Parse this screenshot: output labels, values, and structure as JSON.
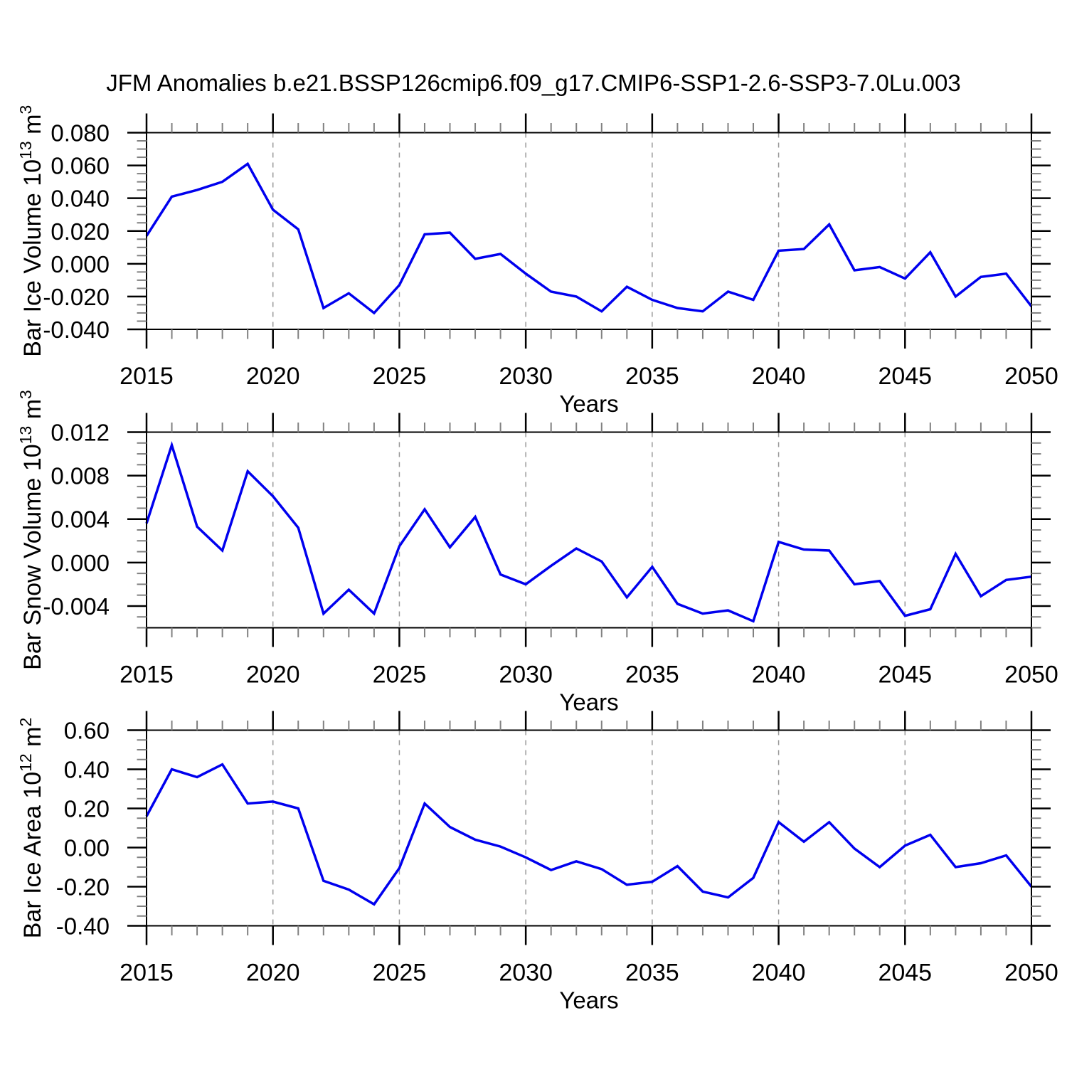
{
  "title": "JFM Anomalies b.e21.BSSP126cmip6.f09_g17.CMIP6-SSP1-2.6-SSP3-7.0Lu.003",
  "styles": {
    "line_color": "#0000ee",
    "axis_color": "#000000",
    "minor_tick_color": "#808080",
    "grid_color": "#999999",
    "background": "#ffffff"
  },
  "chart_data": [
    {
      "type": "line",
      "name": "bar-ice-volume",
      "ylabel_plain": "Bar Ice Volume 10^13 m^3",
      "ylabel_parts": [
        {
          "t": "Bar Ice Volume 10",
          "sup": false
        },
        {
          "t": "13",
          "sup": true
        },
        {
          "t": " m",
          "sup": false
        },
        {
          "t": "3",
          "sup": true
        }
      ],
      "xlabel": "Years",
      "xlim": [
        2015,
        2050
      ],
      "x": [
        2015,
        2016,
        2017,
        2018,
        2019,
        2020,
        2021,
        2022,
        2023,
        2024,
        2025,
        2026,
        2027,
        2028,
        2029,
        2030,
        2031,
        2032,
        2033,
        2034,
        2035,
        2036,
        2037,
        2038,
        2039,
        2040,
        2041,
        2042,
        2043,
        2044,
        2045,
        2046,
        2047,
        2048,
        2049,
        2050
      ],
      "values": [
        0.017,
        0.041,
        0.045,
        0.05,
        0.061,
        0.033,
        0.021,
        -0.027,
        -0.018,
        -0.03,
        -0.013,
        0.018,
        0.019,
        0.003,
        0.006,
        -0.006,
        -0.017,
        -0.02,
        -0.029,
        -0.014,
        -0.022,
        -0.027,
        -0.029,
        -0.017,
        -0.022,
        0.008,
        0.009,
        0.024,
        -0.004,
        -0.002,
        -0.009,
        0.007,
        -0.02,
        -0.008,
        -0.006,
        -0.026
      ],
      "ylim": [
        -0.04,
        0.08
      ],
      "ytick_values": [
        0.08,
        0.06,
        0.04,
        0.02,
        0,
        -0.02,
        -0.04
      ],
      "yticklabels": [
        "0.080",
        "0.060",
        "0.040",
        "0.020",
        "0.000",
        "-0.020",
        "-0.040"
      ],
      "ytick_minor_step": 0.005,
      "xtick_label_values": [
        2015,
        2020,
        2025,
        2030,
        2035,
        2040,
        2045,
        2050
      ],
      "xticklabels": [
        "2015",
        "2020",
        "2025",
        "2030",
        "2035",
        "2040",
        "2045",
        "2050"
      ],
      "xtick_minor_step": 1,
      "grid_years": [
        2020,
        2025,
        2030,
        2035,
        2040,
        2045
      ],
      "grid_on": true
    },
    {
      "type": "line",
      "name": "bar-snow-volume",
      "ylabel_plain": "Bar Snow Volume 10^13 m^3",
      "ylabel_parts": [
        {
          "t": "Bar Snow Volume 10",
          "sup": false
        },
        {
          "t": "13",
          "sup": true
        },
        {
          "t": " m",
          "sup": false
        },
        {
          "t": "3",
          "sup": true
        }
      ],
      "xlabel": "Years",
      "xlim": [
        2015,
        2050
      ],
      "x": [
        2015,
        2016,
        2017,
        2018,
        2019,
        2020,
        2021,
        2022,
        2023,
        2024,
        2025,
        2026,
        2027,
        2028,
        2029,
        2030,
        2031,
        2032,
        2033,
        2034,
        2035,
        2036,
        2037,
        2038,
        2039,
        2040,
        2041,
        2042,
        2043,
        2044,
        2045,
        2046,
        2047,
        2048,
        2049,
        2050
      ],
      "values": [
        0.0036,
        0.0108,
        0.0033,
        0.0011,
        0.0084,
        0.0061,
        0.0032,
        -0.0047,
        -0.0025,
        -0.0047,
        0.0015,
        0.0049,
        0.0014,
        0.0042,
        -0.0011,
        -0.002,
        -0.0003,
        0.0013,
        0.0001,
        -0.0032,
        -0.0004,
        -0.0038,
        -0.0047,
        -0.0044,
        -0.0054,
        0.0019,
        0.0012,
        0.0011,
        -0.002,
        -0.0017,
        -0.0049,
        -0.0043,
        0.0008,
        -0.0031,
        -0.0016,
        -0.0013
      ],
      "ylim": [
        -0.006,
        0.012
      ],
      "ytick_values": [
        0.012,
        0.008,
        0.004,
        0,
        -0.004
      ],
      "yticklabels": [
        "0.012",
        "0.008",
        "0.004",
        "0.000",
        "-0.004"
      ],
      "ytick_minor_step": 0.001,
      "xtick_label_values": [
        2015,
        2020,
        2025,
        2030,
        2035,
        2040,
        2045,
        2050
      ],
      "xticklabels": [
        "2015",
        "2020",
        "2025",
        "2030",
        "2035",
        "2040",
        "2045",
        "2050"
      ],
      "xtick_minor_step": 1,
      "grid_years": [
        2020,
        2025,
        2030,
        2035,
        2040,
        2045
      ],
      "grid_on": true
    },
    {
      "type": "line",
      "name": "bar-ice-area",
      "ylabel_plain": "Bar Ice Area 10^12 m^2",
      "ylabel_parts": [
        {
          "t": "Bar Ice Area 10",
          "sup": false
        },
        {
          "t": "12",
          "sup": true
        },
        {
          "t": " m",
          "sup": false
        },
        {
          "t": "2",
          "sup": true
        }
      ],
      "xlabel": "Years",
      "xlim": [
        2015,
        2050
      ],
      "x": [
        2015,
        2016,
        2017,
        2018,
        2019,
        2020,
        2021,
        2022,
        2023,
        2024,
        2025,
        2026,
        2027,
        2028,
        2029,
        2030,
        2031,
        2032,
        2033,
        2034,
        2035,
        2036,
        2037,
        2038,
        2039,
        2040,
        2041,
        2042,
        2043,
        2044,
        2045,
        2046,
        2047,
        2048,
        2049,
        2050
      ],
      "values": [
        0.16,
        0.4,
        0.36,
        0.425,
        0.225,
        0.235,
        0.2,
        -0.17,
        -0.215,
        -0.29,
        -0.105,
        0.225,
        0.105,
        0.04,
        0.005,
        -0.05,
        -0.115,
        -0.07,
        -0.11,
        -0.19,
        -0.175,
        -0.095,
        -0.225,
        -0.255,
        -0.155,
        0.13,
        0.03,
        0.13,
        -0.005,
        -0.1,
        0.01,
        0.065,
        -0.1,
        -0.08,
        -0.04,
        -0.2
      ],
      "ylim": [
        -0.4,
        0.6
      ],
      "ytick_values": [
        0.6,
        0.4,
        0.2,
        0,
        -0.2,
        -0.4
      ],
      "yticklabels": [
        "0.60",
        "0.40",
        "0.20",
        "0.00",
        "-0.20",
        "-0.40"
      ],
      "ytick_minor_step": 0.05,
      "xtick_label_values": [
        2015,
        2020,
        2025,
        2030,
        2035,
        2040,
        2045,
        2050
      ],
      "xticklabels": [
        "2015",
        "2020",
        "2025",
        "2030",
        "2035",
        "2040",
        "2045",
        "2050"
      ],
      "xtick_minor_step": 1,
      "grid_years": [
        2020,
        2025,
        2030,
        2035,
        2040,
        2045
      ],
      "grid_on": true
    }
  ]
}
